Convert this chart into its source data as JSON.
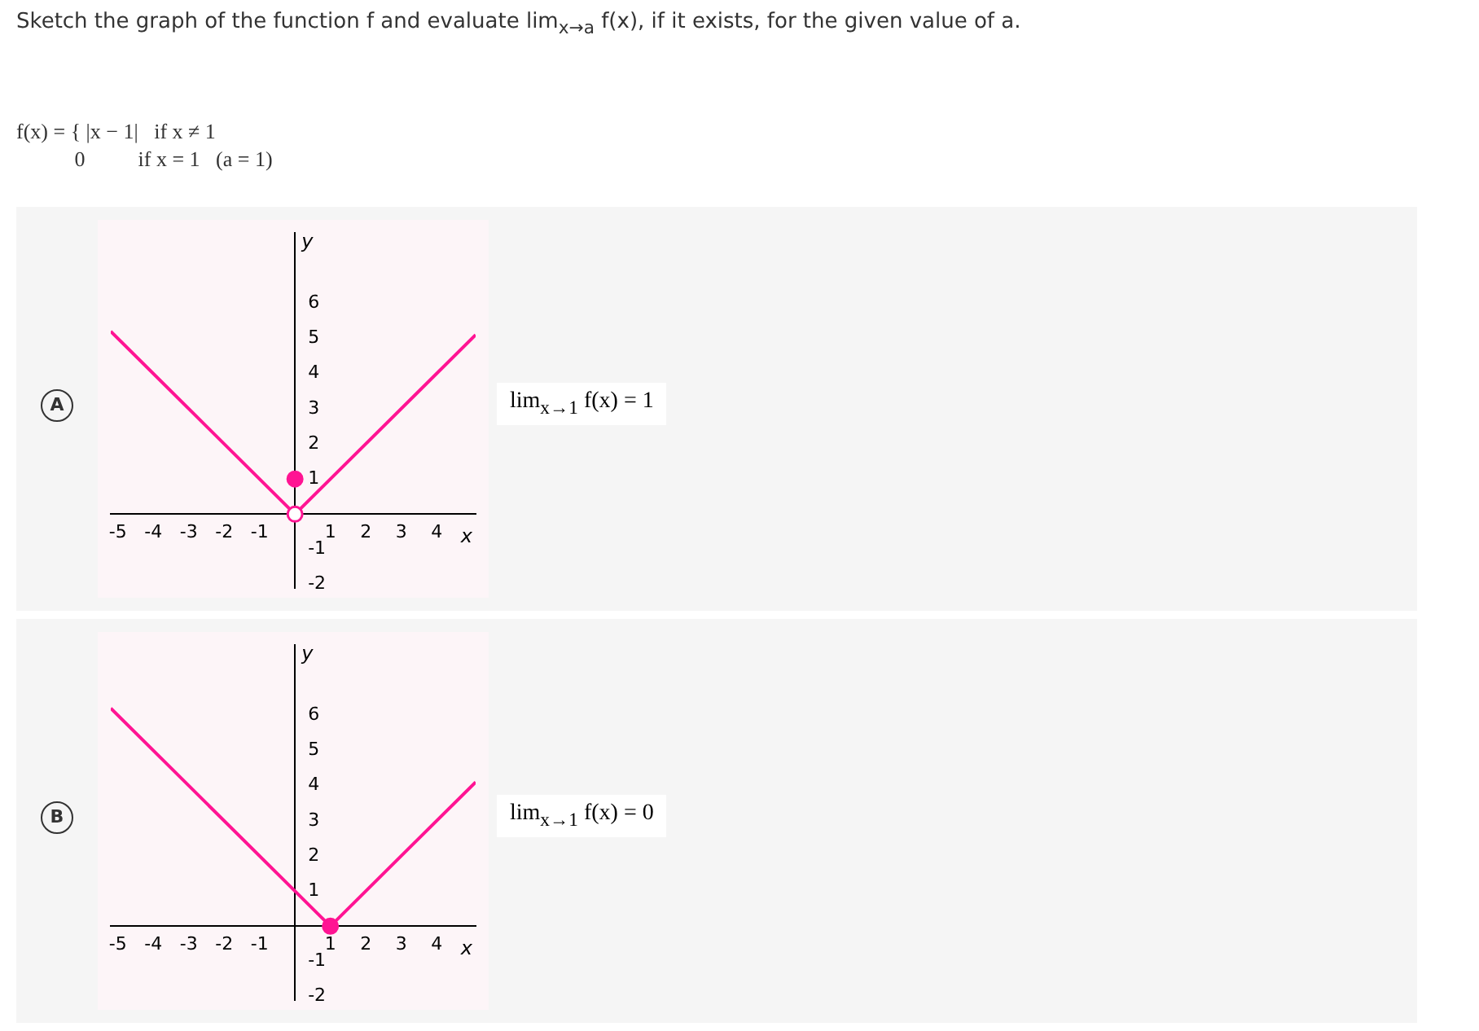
{
  "chart_data": [
    {
      "type": "line",
      "title": "Sketch the graph of the function f and evaluate lim$_{x→a}$ f(x), if it exists, for the given value of a.",
      "subtitle": "f(x) = { |x − 1|   if x ≠ 1\n           0          if x = 1   (a = 1)",
      "xlabel": "x",
      "ylabel": "y",
      "xlim": [
        -5.2,
        5.1
      ],
      "ylim": [
        -2.1,
        8
      ],
      "xticks": [
        -5,
        -4,
        -3,
        -2,
        -1,
        1,
        2,
        3,
        4
      ],
      "yticks": [
        -2,
        -1,
        1,
        2,
        3,
        4,
        5,
        6
      ],
      "annotations": [
        "A",
        "lim$_{x→1}$ f(x) = 1"
      ],
      "series": [
        {
          "type": "line",
          "color": "#ff1493",
          "x": [
            -5.2,
            0,
            5.1
          ],
          "values": [
            5.2,
            0,
            5.1
          ]
        },
        {
          "type": "scatter",
          "color": "#ff1493",
          "marker": "circle",
          "x": [
            0
          ],
          "values": [
            1
          ]
        },
        {
          "type": "scatter",
          "color": "#ffffff",
          "marker": "circle",
          "x": [
            0
          ],
          "values": [
            0
          ]
        }
      ]
    },
    {
      "type": "line",
      "xlabel": "x",
      "ylabel": "y",
      "xlim": [
        -5.2,
        5.1
      ],
      "ylim": [
        -2.1,
        8
      ],
      "xticks": [
        -5,
        -4,
        -3,
        -2,
        -1,
        1,
        2,
        3,
        4
      ],
      "yticks": [
        -2,
        -1,
        1,
        2,
        3,
        4,
        5,
        6
      ],
      "annotations": [
        "B",
        "lim$_{x→1}$ f(x) = 0"
      ],
      "series": [
        {
          "type": "line",
          "color": "#ff1493",
          "x": [
            -5.2,
            1,
            5.1
          ],
          "values": [
            6.2,
            0,
            4.1
          ]
        },
        {
          "type": "scatter",
          "color": "#ff1493",
          "marker": "circle",
          "x": [
            1
          ],
          "values": [
            0
          ]
        }
      ]
    }
  ]
}
